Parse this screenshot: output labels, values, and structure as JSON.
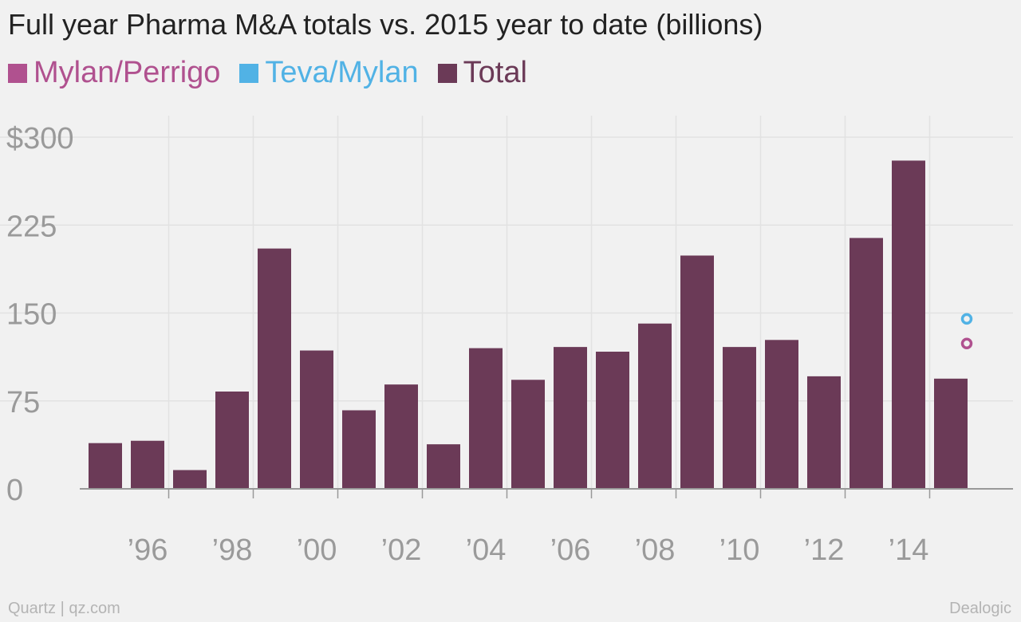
{
  "chart_data": {
    "type": "bar",
    "title": "Full year Pharma M&A totals vs. 2015 year to date (billions)",
    "legend": [
      {
        "name": "Mylan/Perrigo",
        "color": "#b0518f"
      },
      {
        "name": "Teva/Mylan",
        "color": "#51b2e5"
      },
      {
        "name": "Total",
        "color": "#6b3a57"
      }
    ],
    "x": [
      1995,
      1996,
      1997,
      1998,
      1999,
      2000,
      2001,
      2002,
      2003,
      2004,
      2005,
      2006,
      2007,
      2008,
      2009,
      2010,
      2011,
      2012,
      2013,
      2014,
      2015
    ],
    "series": [
      {
        "name": "Total",
        "values": [
          39,
          41,
          16,
          83,
          205,
          118,
          67,
          89,
          38,
          120,
          93,
          121,
          117,
          141,
          199,
          121,
          127,
          96,
          214,
          280,
          94
        ]
      },
      {
        "name": "Mylan/Perrigo",
        "points": [
          {
            "x": 2015,
            "y": 124
          }
        ]
      },
      {
        "name": "Teva/Mylan",
        "points": [
          {
            "x": 2015,
            "y": 145
          }
        ]
      }
    ],
    "xticks": [
      {
        "value": 1996,
        "label": "’96"
      },
      {
        "value": 1998,
        "label": "’98"
      },
      {
        "value": 2000,
        "label": "’00"
      },
      {
        "value": 2002,
        "label": "’02"
      },
      {
        "value": 2004,
        "label": "’04"
      },
      {
        "value": 2006,
        "label": "’06"
      },
      {
        "value": 2008,
        "label": "’08"
      },
      {
        "value": 2010,
        "label": "’10"
      },
      {
        "value": 2012,
        "label": "’12"
      },
      {
        "value": 2014,
        "label": "’14"
      }
    ],
    "yticks": [
      {
        "value": 0,
        "label": "0"
      },
      {
        "value": 75,
        "label": "75"
      },
      {
        "value": 150,
        "label": "150"
      },
      {
        "value": 225,
        "label": "225"
      },
      {
        "value": 300,
        "label": "$300"
      }
    ],
    "ylim": [
      0,
      300
    ],
    "grid": true,
    "legend_position": "top-left"
  },
  "footer": {
    "left": "Quartz | qz.com",
    "right": "Dealogic"
  },
  "colors": {
    "background": "#f1f1f1",
    "bar": "#6b3a57",
    "grid": "#e2e2e2",
    "axis": "#999999",
    "tick_text": "#9a9a9a"
  }
}
